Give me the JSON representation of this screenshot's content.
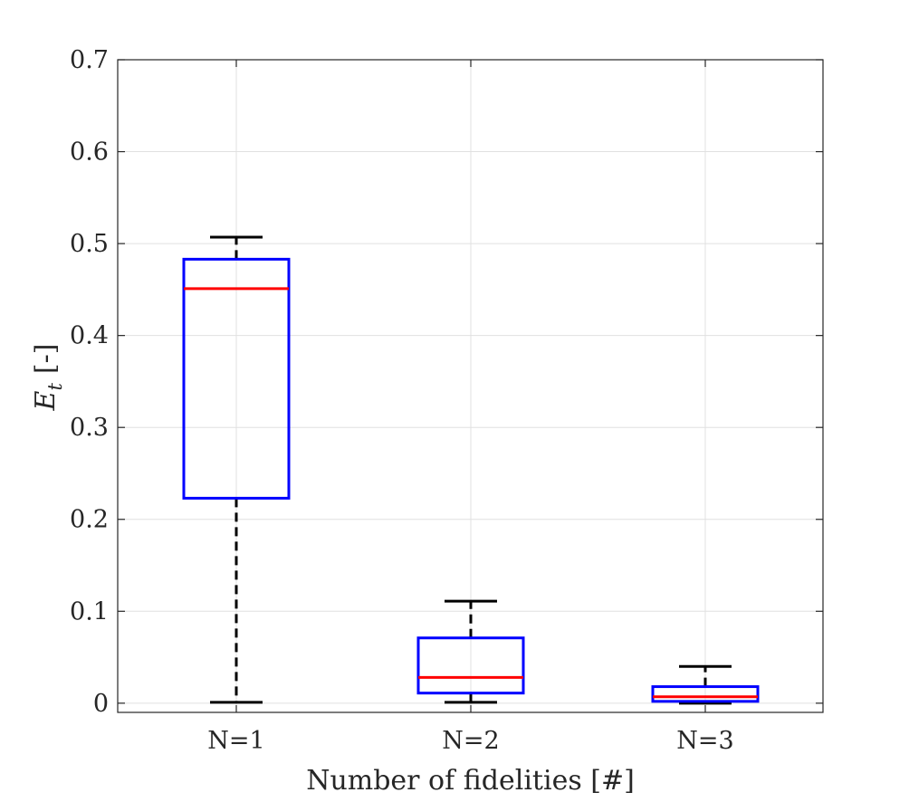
{
  "chart_data": {
    "type": "boxplot",
    "title": "",
    "xlabel": "Number of fidelities [#]",
    "ylabel_main": "E",
    "ylabel_subscript": "t",
    "ylabel_suffix": "[-]",
    "ylim": [
      -0.01,
      0.7
    ],
    "yticks": [
      0,
      0.1,
      0.2,
      0.3,
      0.4,
      0.5,
      0.6,
      0.7
    ],
    "ytick_labels": [
      "0",
      "0.1",
      "0.2",
      "0.3",
      "0.4",
      "0.5",
      "0.6",
      "0.7"
    ],
    "grid": true,
    "categories": [
      "N=1",
      "N=2",
      "N=3"
    ],
    "boxes": [
      {
        "name": "N=1",
        "whisker_low": 0.001,
        "q1": 0.223,
        "median": 0.451,
        "q3": 0.483,
        "whisker_high": 0.507
      },
      {
        "name": "N=2",
        "whisker_low": 0.001,
        "q1": 0.011,
        "median": 0.028,
        "q3": 0.071,
        "whisker_high": 0.111
      },
      {
        "name": "N=3",
        "whisker_low": 0.0,
        "q1": 0.002,
        "median": 0.007,
        "q3": 0.018,
        "whisker_high": 0.04
      }
    ],
    "colors": {
      "box": "#0000ff",
      "median": "#ff0000",
      "whisker": "#000000",
      "axis": "#262626",
      "grid": "#e0e0e0"
    }
  }
}
